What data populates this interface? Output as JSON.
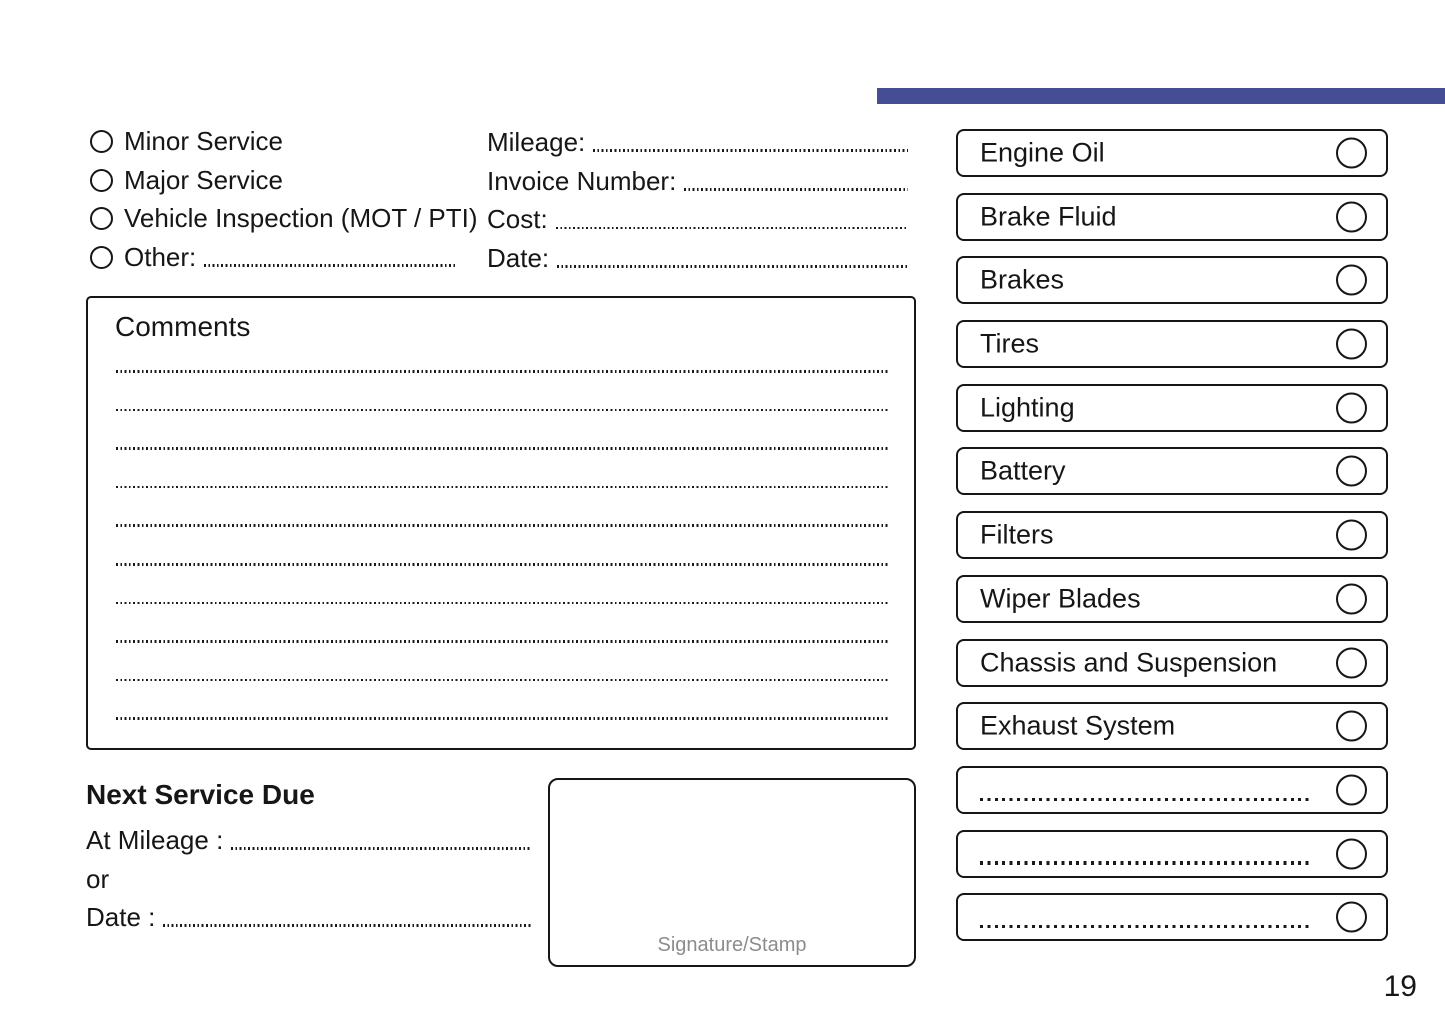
{
  "page": {
    "number": "19"
  },
  "colors": {
    "accent": "#474d93",
    "ink": "#161616",
    "signature_hint": "#8c8c8c"
  },
  "service_type": {
    "options": [
      {
        "label": "Minor Service",
        "has_line": false
      },
      {
        "label": "Major Service",
        "has_line": false
      },
      {
        "label": "Vehicle Inspection (MOT / PTI)",
        "has_line": false
      },
      {
        "label": "Other:",
        "has_line": true
      }
    ]
  },
  "invoice_fields": [
    {
      "label": "Mileage:"
    },
    {
      "label": "Invoice Number:"
    },
    {
      "label": "Cost:"
    },
    {
      "label": "Date:"
    }
  ],
  "comments": {
    "title": "Comments",
    "line_count": 10
  },
  "next_service": {
    "title": "Next Service Due",
    "at_mileage_label": "At Mileage :",
    "or_label": "or",
    "date_label": "Date :"
  },
  "signature": {
    "label": "Signature/Stamp"
  },
  "checklist": {
    "items": [
      {
        "label": "Engine Oil",
        "blank": false
      },
      {
        "label": "Brake Fluid",
        "blank": false
      },
      {
        "label": "Brakes",
        "blank": false
      },
      {
        "label": "Tires",
        "blank": false
      },
      {
        "label": "Lighting",
        "blank": false
      },
      {
        "label": "Battery",
        "blank": false
      },
      {
        "label": "Filters",
        "blank": false
      },
      {
        "label": "Wiper Blades",
        "blank": false
      },
      {
        "label": "Chassis and Suspension",
        "blank": false
      },
      {
        "label": "Exhaust System",
        "blank": false
      },
      {
        "label": "",
        "blank": true
      },
      {
        "label": "",
        "blank": true
      },
      {
        "label": "",
        "blank": true
      }
    ]
  }
}
